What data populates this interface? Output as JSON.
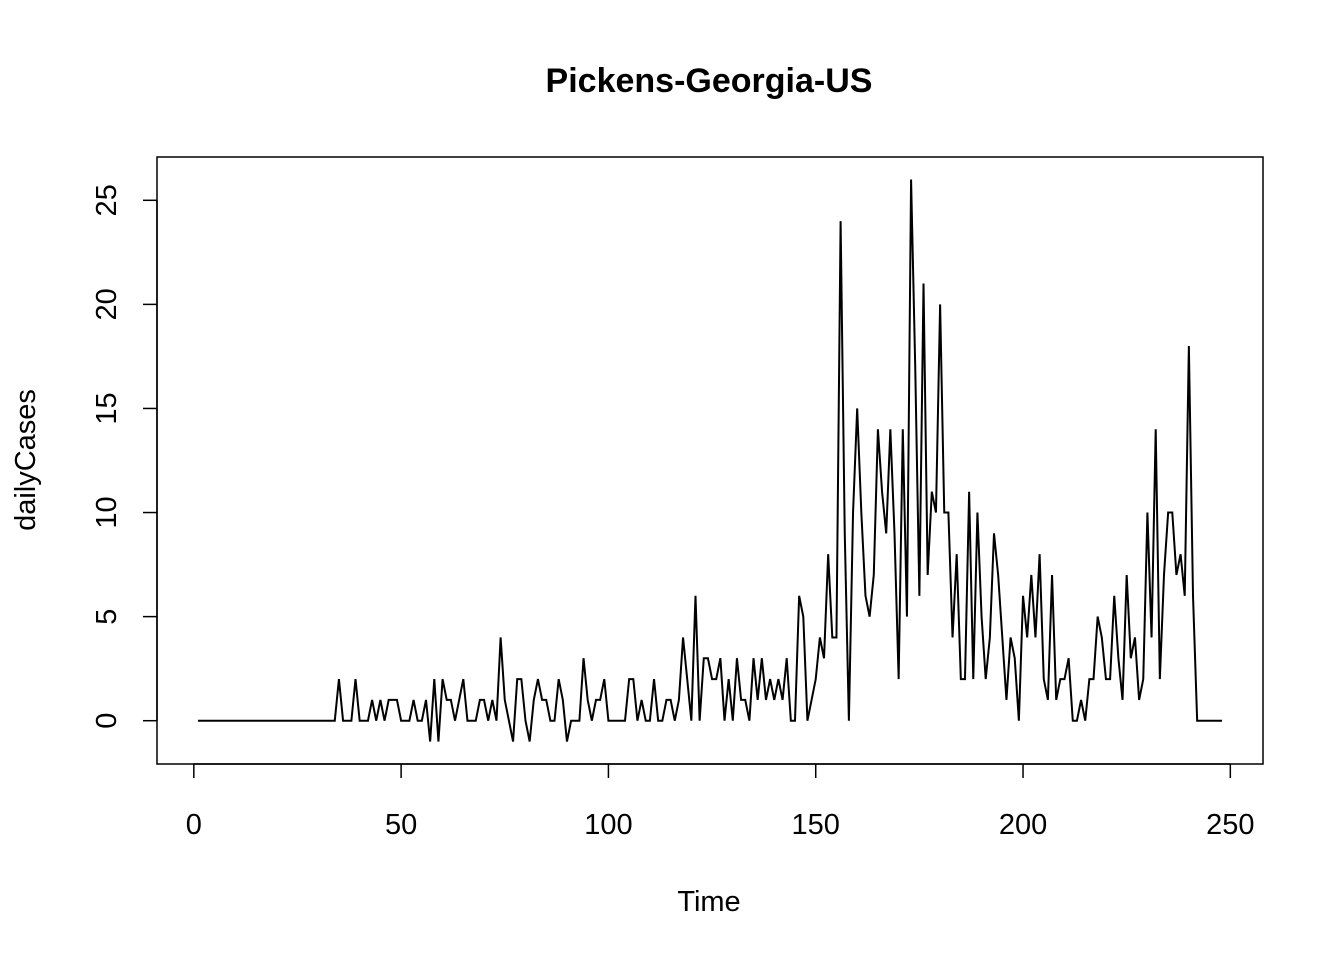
{
  "chart_data": {
    "type": "line",
    "title": "Pickens-Georgia-US",
    "xlabel": "Time",
    "ylabel": "dailyCases",
    "xlim": [
      1,
      248
    ],
    "ylim": [
      -1,
      26
    ],
    "xticks": [
      0,
      50,
      100,
      150,
      200,
      250
    ],
    "yticks": [
      0,
      5,
      10,
      15,
      20,
      25
    ],
    "x_start": 1,
    "grid": false,
    "series": [
      {
        "values": [
          0,
          0,
          0,
          0,
          0,
          0,
          0,
          0,
          0,
          0,
          0,
          0,
          0,
          0,
          0,
          0,
          0,
          0,
          0,
          0,
          0,
          0,
          0,
          0,
          0,
          0,
          0,
          0,
          0,
          0,
          0,
          0,
          0,
          0,
          2,
          0,
          0,
          0,
          2,
          0,
          0,
          0,
          1,
          0,
          1,
          0,
          1,
          1,
          1,
          0,
          0,
          0,
          1,
          0,
          0,
          1,
          -1,
          2,
          -1,
          2,
          1,
          1,
          0,
          1,
          2,
          0,
          0,
          0,
          1,
          1,
          0,
          1,
          0,
          4,
          1,
          0,
          -1,
          2,
          2,
          0,
          -1,
          1,
          2,
          1,
          1,
          0,
          0,
          2,
          1,
          -1,
          0,
          0,
          0,
          3,
          1,
          0,
          1,
          1,
          2,
          0,
          0,
          0,
          0,
          0,
          2,
          2,
          0,
          1,
          0,
          0,
          2,
          0,
          0,
          1,
          1,
          0,
          1,
          4,
          2,
          0,
          6,
          0,
          3,
          3,
          2,
          2,
          3,
          0,
          2,
          0,
          3,
          1,
          1,
          0,
          3,
          1,
          3,
          1,
          2,
          1,
          2,
          1,
          3,
          0,
          0,
          6,
          5,
          0,
          1,
          2,
          4,
          3,
          8,
          4,
          4,
          24,
          9,
          0,
          10,
          15,
          10,
          6,
          5,
          7,
          14,
          11,
          9,
          14,
          9,
          2,
          14,
          5,
          26,
          17,
          6,
          21,
          7,
          11,
          10,
          20,
          10,
          10,
          4,
          8,
          2,
          2,
          11,
          2,
          10,
          5,
          2,
          4,
          9,
          7,
          4,
          1,
          4,
          3,
          0,
          6,
          4,
          7,
          4,
          8,
          2,
          1,
          7,
          1,
          2,
          2,
          3,
          0,
          0,
          1,
          0,
          2,
          2,
          5,
          4,
          2,
          2,
          6,
          3,
          1,
          7,
          3,
          4,
          1,
          2,
          10,
          4,
          14,
          2,
          7,
          10,
          10,
          7,
          8,
          6,
          18,
          6,
          0,
          0,
          0,
          0,
          0,
          0,
          0
        ]
      }
    ]
  }
}
